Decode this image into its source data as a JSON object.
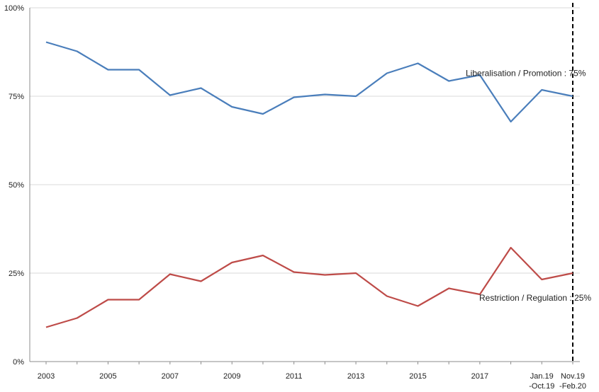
{
  "chart_data": {
    "type": "line",
    "x": [
      "2003",
      "2004",
      "2005",
      "2006",
      "2007",
      "2008",
      "2009",
      "2010",
      "2011",
      "2012",
      "2013",
      "2014",
      "2015",
      "2016",
      "2017",
      "2018",
      "Jan.19 -Oct.19",
      "Nov.19 -Feb.20"
    ],
    "x_tick_labels": [
      {
        "index": 0,
        "lines": [
          "2003"
        ]
      },
      {
        "index": 2,
        "lines": [
          "2005"
        ]
      },
      {
        "index": 4,
        "lines": [
          "2007"
        ]
      },
      {
        "index": 6,
        "lines": [
          "2009"
        ]
      },
      {
        "index": 8,
        "lines": [
          "2011"
        ]
      },
      {
        "index": 10,
        "lines": [
          "2013"
        ]
      },
      {
        "index": 12,
        "lines": [
          "2015"
        ]
      },
      {
        "index": 14,
        "lines": [
          "2017"
        ]
      },
      {
        "index": 16,
        "lines": [
          "Jan.19",
          "-Oct.19"
        ]
      },
      {
        "index": 17,
        "lines": [
          "Nov.19",
          "-Feb.20"
        ]
      }
    ],
    "y_ticks": [
      0,
      25,
      50,
      75,
      100
    ],
    "y_tick_labels": [
      "0%",
      "25%",
      "50%",
      "75%",
      "100%"
    ],
    "ylim": [
      0,
      100
    ],
    "grid": true,
    "series": [
      {
        "label": "Liberalisation / Promotion : 75%",
        "color": "#4A7EBB",
        "values": [
          90.3,
          87.7,
          82.5,
          82.5,
          75.3,
          77.3,
          72.0,
          70.0,
          74.7,
          75.5,
          75.0,
          81.5,
          84.3,
          79.3,
          81.0,
          67.8,
          76.8,
          75.0
        ]
      },
      {
        "label": "Restriction / Regulation : 25%",
        "color": "#BE4B48",
        "values": [
          9.7,
          12.3,
          17.5,
          17.5,
          24.7,
          22.7,
          28.0,
          30.0,
          25.3,
          24.5,
          25.0,
          18.5,
          15.7,
          20.7,
          19.0,
          32.2,
          23.2,
          25.0
        ]
      }
    ],
    "reference_line": {
      "at_index": 17,
      "style": "dashed",
      "color": "#000000"
    },
    "title": "",
    "xlabel": "",
    "ylabel": ""
  }
}
